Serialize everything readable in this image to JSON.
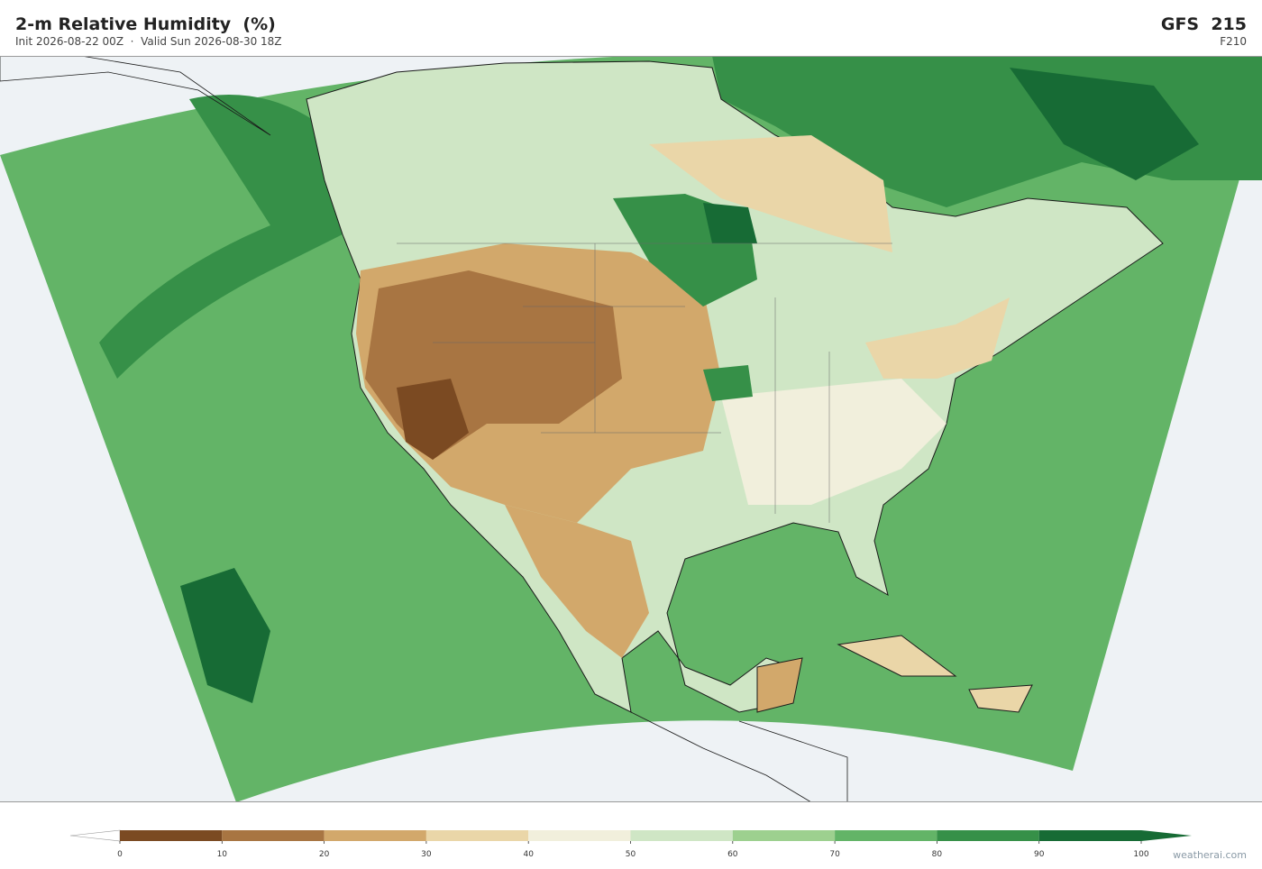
{
  "header": {
    "title": "2-m Relative Humidity  (%)",
    "subtitle": "Init 2026-08-22 00Z  ·  Valid Sun 2026-08-30 18Z",
    "model": "GFS  215",
    "forecast_hour": "F210"
  },
  "colorbar": {
    "ticks": [
      0,
      10,
      20,
      30,
      40,
      50,
      60,
      70,
      80,
      90,
      100
    ],
    "colors": [
      "#7b4a22",
      "#a87542",
      "#d2a86b",
      "#ead6a8",
      "#f1efdc",
      "#cfe6c5",
      "#9dd08f",
      "#63b467",
      "#369048",
      "#176b35"
    ],
    "under_color": "#ffffff",
    "over_color": "#176b35"
  },
  "watermark": "weatherai.com"
}
